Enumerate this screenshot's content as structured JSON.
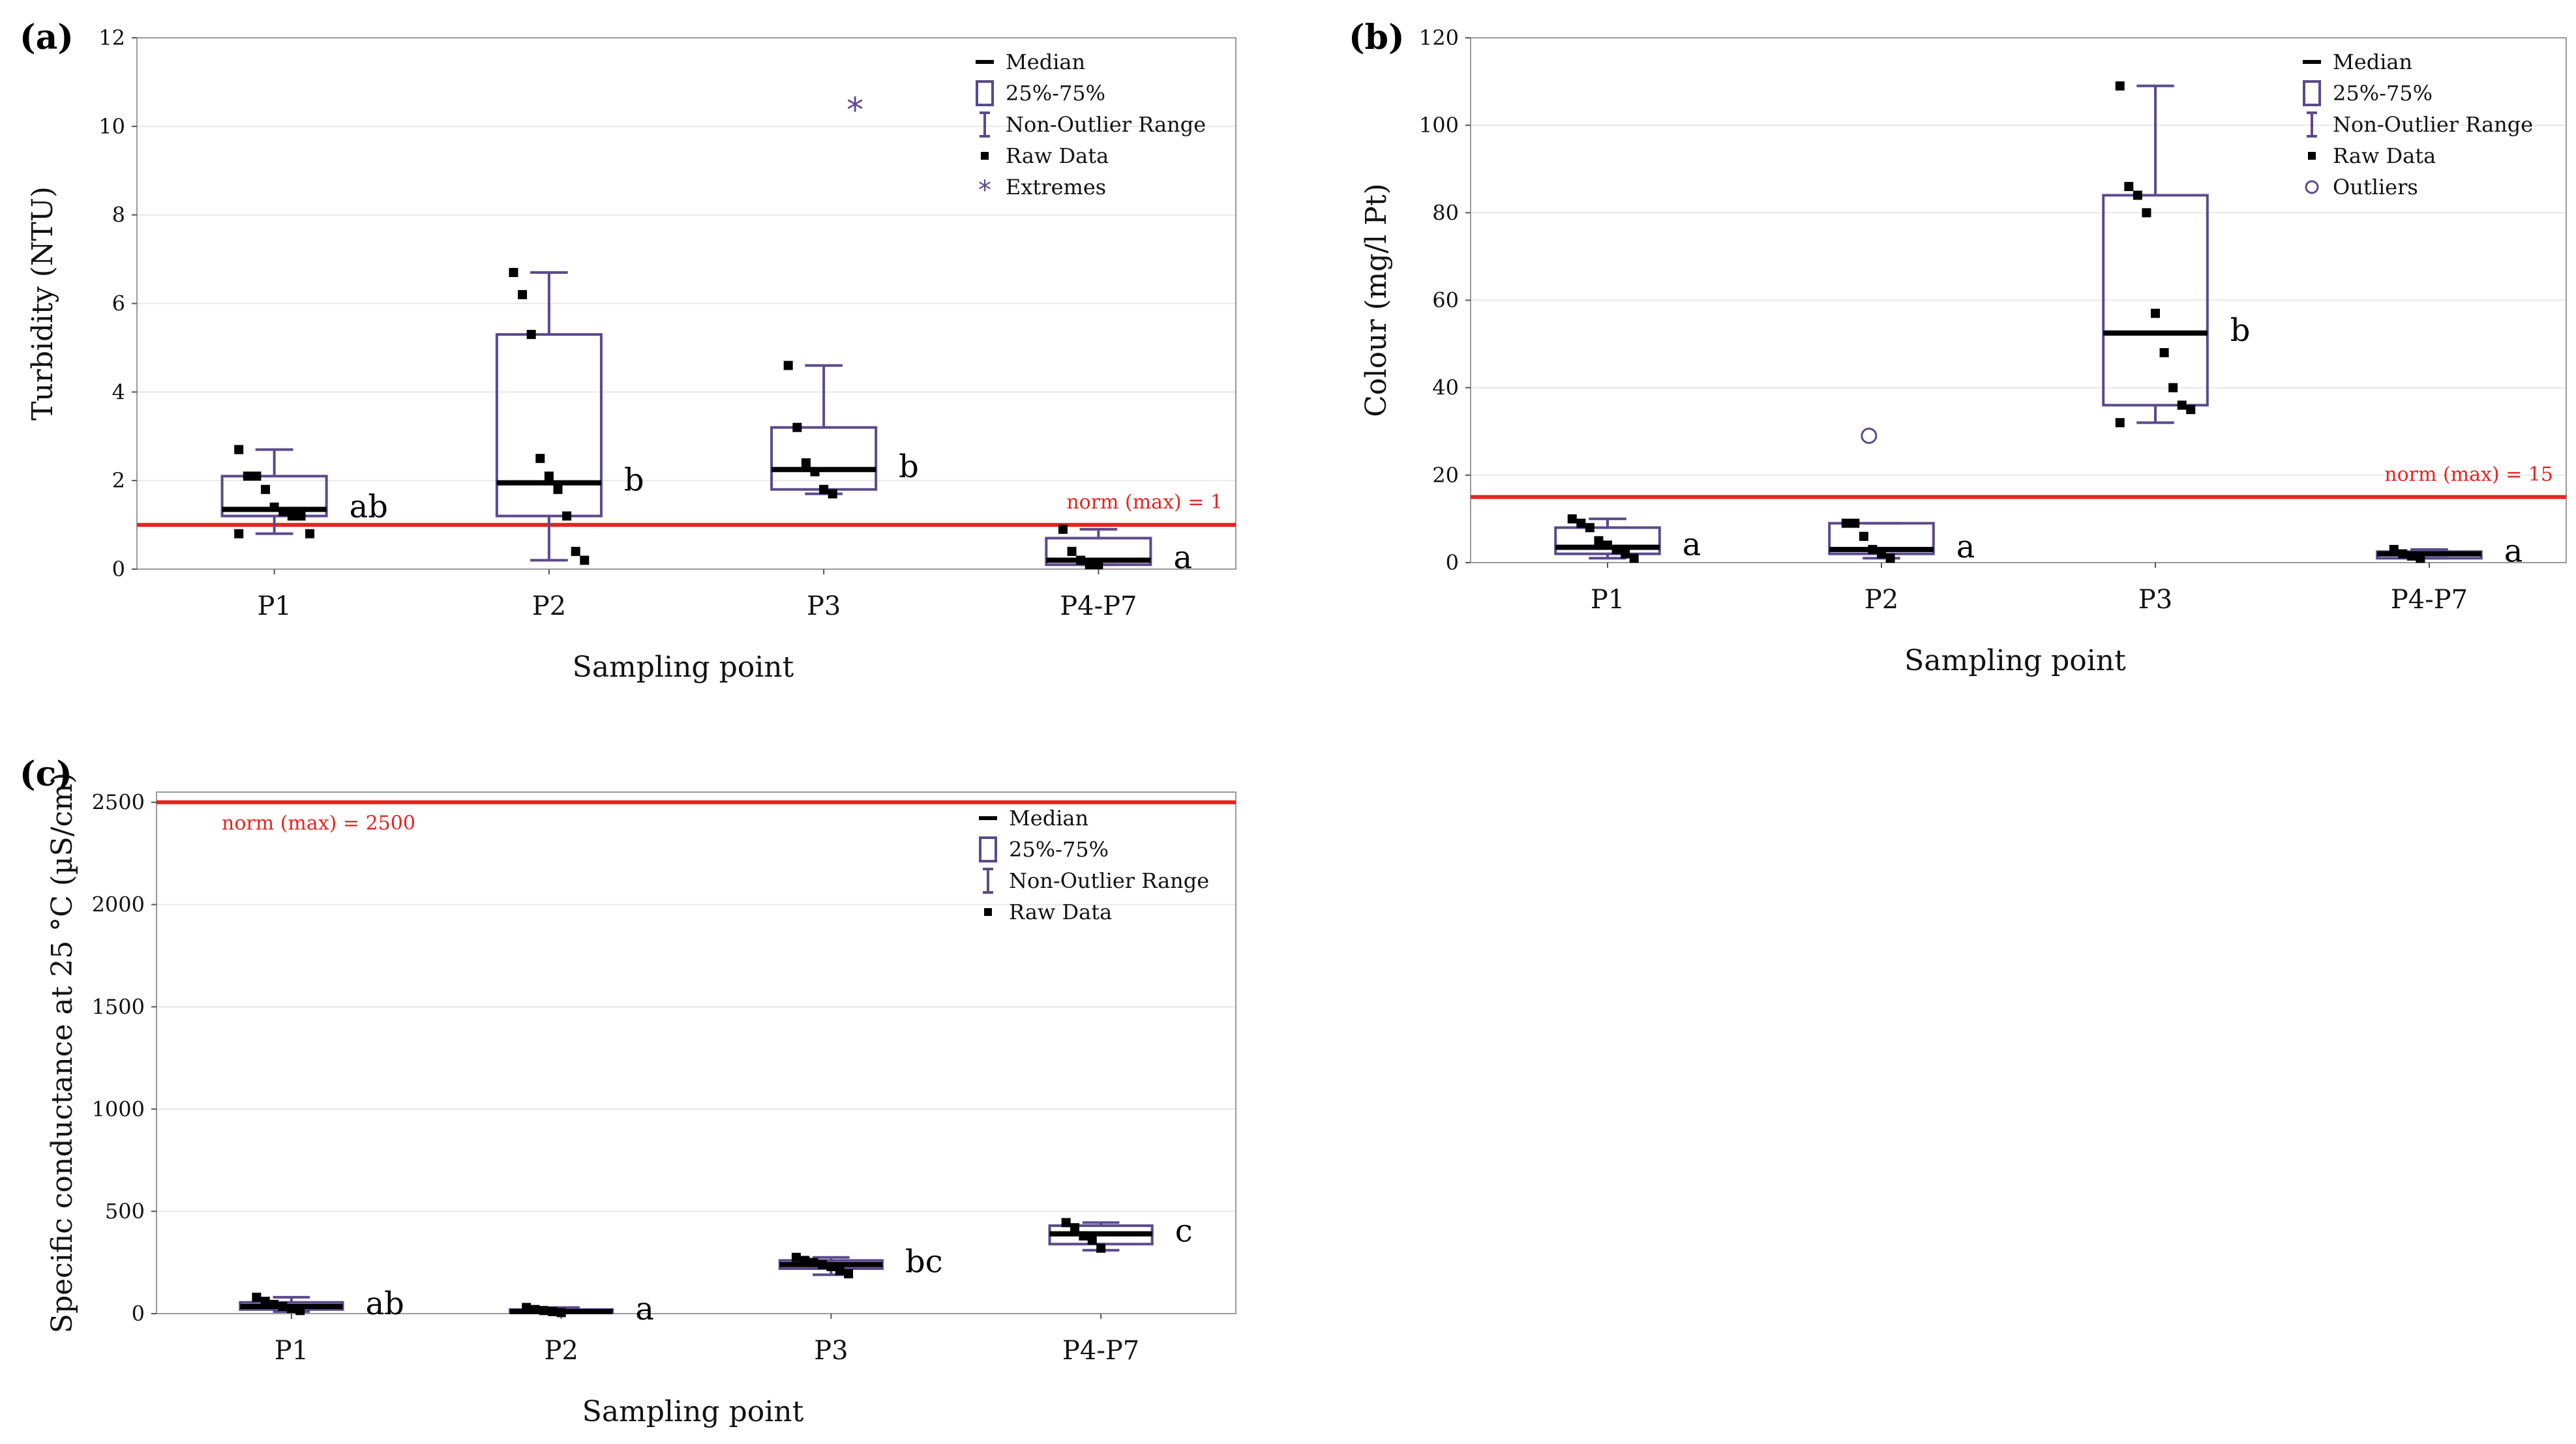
{
  "chart_data": [
    {
      "id": "a",
      "panel_label": "(a)",
      "type": "box",
      "ylabel": "Turbidity (NTU)",
      "xlabel": "Sampling point",
      "ylim": [
        0,
        12
      ],
      "yticks": [
        0,
        2,
        4,
        6,
        8,
        10,
        12
      ],
      "categories": [
        "P1",
        "P2",
        "P3",
        "P4-P7"
      ],
      "norm": {
        "value": 1,
        "label": "norm (max) = 1",
        "label_pos": "right"
      },
      "legend": [
        "Median",
        "25%-75%",
        "Non-Outlier Range",
        "Raw Data",
        "Extremes"
      ],
      "boxes": [
        {
          "cat": "P1",
          "q1": 1.2,
          "median": 1.35,
          "q3": 2.1,
          "wlow": 0.8,
          "whigh": 2.7,
          "group": "ab",
          "raw": [
            2.7,
            2.1,
            2.1,
            1.8,
            1.4,
            1.3,
            1.2,
            1.2,
            0.8,
            0.8
          ]
        },
        {
          "cat": "P2",
          "q1": 1.2,
          "median": 1.95,
          "q3": 5.3,
          "wlow": 0.2,
          "whigh": 6.7,
          "group": "b",
          "raw": [
            6.7,
            6.2,
            5.3,
            2.5,
            2.1,
            1.8,
            1.2,
            0.4,
            0.2
          ]
        },
        {
          "cat": "P3",
          "q1": 1.8,
          "median": 2.25,
          "q3": 3.2,
          "wlow": 1.7,
          "whigh": 4.6,
          "group": "b",
          "raw": [
            4.6,
            3.2,
            2.4,
            2.2,
            1.8,
            1.7
          ],
          "extremes": [
            10.4
          ]
        },
        {
          "cat": "P4-P7",
          "q1": 0.1,
          "median": 0.2,
          "q3": 0.7,
          "wlow": 0.1,
          "whigh": 0.9,
          "group": "a",
          "raw": [
            0.9,
            0.4,
            0.2,
            0.1,
            0.1
          ]
        }
      ]
    },
    {
      "id": "b",
      "panel_label": "(b)",
      "type": "box",
      "ylabel": "Colour (mg/l Pt)",
      "xlabel": "Sampling point",
      "ylim": [
        0,
        120
      ],
      "yticks": [
        0,
        20,
        40,
        60,
        80,
        100,
        120
      ],
      "categories": [
        "P1",
        "P2",
        "P3",
        "P4-P7"
      ],
      "norm": {
        "value": 15,
        "label": "norm (max) = 15",
        "label_pos": "right"
      },
      "legend": [
        "Median",
        "25%-75%",
        "Non-Outlier Range",
        "Raw Data",
        "Outliers"
      ],
      "boxes": [
        {
          "cat": "P1",
          "q1": 2,
          "median": 3.5,
          "q3": 8,
          "wlow": 1,
          "whigh": 10,
          "group": "a",
          "raw": [
            10,
            9,
            8,
            5,
            4,
            3,
            2,
            1
          ]
        },
        {
          "cat": "P2",
          "q1": 2,
          "median": 3,
          "q3": 9,
          "wlow": 1,
          "whigh": 9,
          "group": "a",
          "raw": [
            9,
            9,
            6,
            3,
            2,
            1
          ],
          "outliers": [
            29
          ]
        },
        {
          "cat": "P3",
          "q1": 36,
          "median": 52.5,
          "q3": 84,
          "wlow": 32,
          "whigh": 109,
          "group": "b",
          "raw": [
            109,
            86,
            84,
            80,
            57,
            48,
            40,
            36,
            35,
            32
          ]
        },
        {
          "cat": "P4-P7",
          "q1": 1,
          "median": 2,
          "q3": 2.5,
          "wlow": 1,
          "whigh": 3,
          "group": "a",
          "raw": [
            3,
            2,
            1.5,
            1
          ]
        }
      ]
    },
    {
      "id": "c",
      "panel_label": "(c)",
      "type": "box",
      "ylabel": "Specific conductance at 25 °C (µS/cm)",
      "xlabel": "Sampling point",
      "ylim": [
        0,
        2550
      ],
      "yticks": [
        0,
        500,
        1000,
        1500,
        2000,
        2500
      ],
      "categories": [
        "P1",
        "P2",
        "P3",
        "P4-P7"
      ],
      "norm": {
        "value": 2500,
        "label": "norm (max) = 2500",
        "label_pos": "left"
      },
      "legend": [
        "Median",
        "25%-75%",
        "Non-Outlier Range",
        "Raw Data"
      ],
      "boxes": [
        {
          "cat": "P1",
          "q1": 20,
          "median": 35,
          "q3": 55,
          "wlow": 10,
          "whigh": 80,
          "group": "ab",
          "raw": [
            80,
            60,
            45,
            35,
            25,
            15
          ]
        },
        {
          "cat": "P2",
          "q1": 5,
          "median": 10,
          "q3": 20,
          "wlow": 3,
          "whigh": 30,
          "group": "a",
          "raw": [
            30,
            20,
            15,
            10,
            5
          ]
        },
        {
          "cat": "P3",
          "q1": 220,
          "median": 240,
          "q3": 260,
          "wlow": 190,
          "whigh": 275,
          "group": "bc",
          "raw": [
            275,
            260,
            250,
            240,
            230,
            210,
            195
          ]
        },
        {
          "cat": "P4-P7",
          "q1": 340,
          "median": 390,
          "q3": 430,
          "wlow": 310,
          "whigh": 445,
          "group": "c",
          "raw": [
            445,
            420,
            380,
            360,
            320
          ]
        }
      ]
    }
  ]
}
